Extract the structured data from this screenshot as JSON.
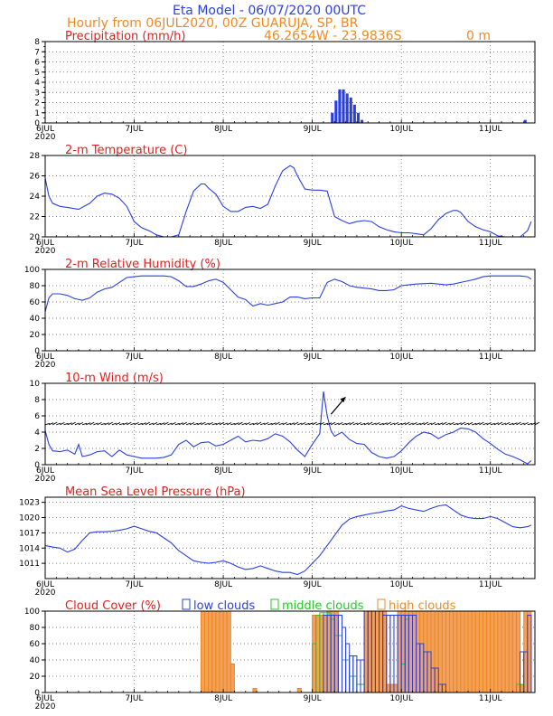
{
  "header": {
    "title": "Eta Model - 06/07/2020 00UTC",
    "subtitle": "Hourly from 06JUL2020, 00Z  GUARUJA, SP, BR",
    "coords": "46.2654W - 23.9836S",
    "elevation": "0   m"
  },
  "colors": {
    "title": "#2a3fe0",
    "orange": "#f08a24",
    "red": "#e02020",
    "series": "#2a3fe0",
    "low": "#2a3fe0",
    "middle": "#1fcc1f",
    "high": "#f5a05a",
    "high_edge": "#e8891e",
    "arrow": "#000000"
  },
  "x_axis": {
    "hours": 132,
    "tick_hours": [
      0,
      24,
      48,
      72,
      96,
      120
    ],
    "tick_labels": [
      "6JUL",
      "7JUL",
      "8JUL",
      "9JUL",
      "10JUL",
      "11JUL"
    ],
    "year_label": "2020"
  },
  "chart_data": [
    {
      "type": "bar",
      "title": "Precipitation (mm/h)",
      "ylim": [
        0,
        8
      ],
      "yticks": [
        0,
        1,
        2,
        3,
        4,
        5,
        6,
        7,
        8
      ],
      "points": [
        [
          77,
          1.0
        ],
        [
          78,
          2.2
        ],
        [
          79,
          3.3
        ],
        [
          80,
          3.3
        ],
        [
          81,
          2.9
        ],
        [
          82,
          2.5
        ],
        [
          83,
          1.8
        ],
        [
          84,
          1.0
        ],
        [
          85,
          0.3
        ],
        [
          129,
          0.3
        ]
      ]
    },
    {
      "type": "line",
      "title": "2-m Temperature (C)",
      "ylim": [
        20,
        28
      ],
      "yticks": [
        20,
        22,
        24,
        26,
        28
      ],
      "points": [
        [
          0,
          25.8
        ],
        [
          1,
          24.0
        ],
        [
          2,
          23.3
        ],
        [
          4,
          23.0
        ],
        [
          6,
          22.9
        ],
        [
          9,
          22.7
        ],
        [
          12,
          23.3
        ],
        [
          14,
          24.0
        ],
        [
          16,
          24.3
        ],
        [
          18,
          24.2
        ],
        [
          20,
          23.8
        ],
        [
          22,
          23.0
        ],
        [
          24,
          21.5
        ],
        [
          26,
          20.9
        ],
        [
          28,
          20.6
        ],
        [
          30,
          20.2
        ],
        [
          32,
          20.0
        ],
        [
          34,
          20.0
        ],
        [
          36,
          20.2
        ],
        [
          38,
          22.5
        ],
        [
          40,
          24.5
        ],
        [
          42,
          25.2
        ],
        [
          43,
          25.2
        ],
        [
          44,
          24.8
        ],
        [
          46,
          24.2
        ],
        [
          48,
          23.0
        ],
        [
          50,
          22.5
        ],
        [
          52,
          22.5
        ],
        [
          54,
          22.9
        ],
        [
          56,
          23.0
        ],
        [
          58,
          22.8
        ],
        [
          60,
          23.2
        ],
        [
          62,
          25.0
        ],
        [
          64,
          26.5
        ],
        [
          66,
          27.0
        ],
        [
          67,
          26.8
        ],
        [
          68,
          26.0
        ],
        [
          70,
          24.7
        ],
        [
          72,
          24.6
        ],
        [
          74,
          24.6
        ],
        [
          76,
          24.5
        ],
        [
          78,
          22.0
        ],
        [
          80,
          21.6
        ],
        [
          82,
          21.3
        ],
        [
          84,
          21.5
        ],
        [
          86,
          21.6
        ],
        [
          88,
          21.5
        ],
        [
          90,
          21.0
        ],
        [
          92,
          20.7
        ],
        [
          94,
          20.5
        ],
        [
          96,
          20.4
        ],
        [
          98,
          20.4
        ],
        [
          100,
          20.3
        ],
        [
          102,
          20.2
        ],
        [
          104,
          20.8
        ],
        [
          106,
          21.7
        ],
        [
          108,
          22.3
        ],
        [
          110,
          22.6
        ],
        [
          111,
          22.6
        ],
        [
          112,
          22.4
        ],
        [
          114,
          21.5
        ],
        [
          116,
          21.0
        ],
        [
          118,
          20.7
        ],
        [
          120,
          20.5
        ],
        [
          122,
          20.1
        ],
        [
          124,
          20.0
        ],
        [
          126,
          20.0
        ],
        [
          128,
          20.0
        ],
        [
          130,
          20.6
        ],
        [
          131,
          21.5
        ]
      ]
    },
    {
      "type": "line",
      "title": "2-m Relative Humidity (%)",
      "ylim": [
        0,
        100
      ],
      "yticks": [
        0,
        20,
        40,
        60,
        80,
        100
      ],
      "points": [
        [
          0,
          48
        ],
        [
          1,
          65
        ],
        [
          2,
          70
        ],
        [
          4,
          70
        ],
        [
          6,
          68
        ],
        [
          8,
          64
        ],
        [
          10,
          62
        ],
        [
          12,
          65
        ],
        [
          14,
          72
        ],
        [
          16,
          76
        ],
        [
          18,
          78
        ],
        [
          20,
          84
        ],
        [
          22,
          90
        ],
        [
          24,
          91
        ],
        [
          26,
          92
        ],
        [
          28,
          92
        ],
        [
          30,
          92
        ],
        [
          32,
          92
        ],
        [
          34,
          91
        ],
        [
          36,
          86
        ],
        [
          38,
          79
        ],
        [
          40,
          79
        ],
        [
          42,
          82
        ],
        [
          44,
          86
        ],
        [
          46,
          88
        ],
        [
          48,
          84
        ],
        [
          50,
          75
        ],
        [
          52,
          66
        ],
        [
          54,
          63
        ],
        [
          56,
          55
        ],
        [
          58,
          58
        ],
        [
          60,
          56
        ],
        [
          62,
          58
        ],
        [
          64,
          60
        ],
        [
          66,
          66
        ],
        [
          68,
          66
        ],
        [
          70,
          64
        ],
        [
          72,
          65
        ],
        [
          74,
          65
        ],
        [
          76,
          84
        ],
        [
          78,
          88
        ],
        [
          80,
          85
        ],
        [
          82,
          80
        ],
        [
          84,
          78
        ],
        [
          86,
          77
        ],
        [
          88,
          76
        ],
        [
          90,
          74
        ],
        [
          92,
          74
        ],
        [
          94,
          75
        ],
        [
          96,
          80
        ],
        [
          98,
          81
        ],
        [
          100,
          82
        ],
        [
          104,
          83
        ],
        [
          108,
          81
        ],
        [
          110,
          82
        ],
        [
          112,
          84
        ],
        [
          114,
          86
        ],
        [
          116,
          88
        ],
        [
          118,
          91
        ],
        [
          120,
          92
        ],
        [
          124,
          92
        ],
        [
          128,
          92
        ],
        [
          130,
          91
        ],
        [
          131,
          88
        ]
      ]
    },
    {
      "type": "line",
      "title": "10-m Wind (m/s)",
      "ylim": [
        0,
        10
      ],
      "yticks": [
        0,
        2,
        4,
        6,
        8,
        10
      ],
      "points": [
        [
          0,
          4.2
        ],
        [
          1,
          2.5
        ],
        [
          2,
          1.7
        ],
        [
          4,
          1.6
        ],
        [
          6,
          1.8
        ],
        [
          8,
          1.3
        ],
        [
          9,
          2.5
        ],
        [
          10,
          1.0
        ],
        [
          12,
          1.2
        ],
        [
          14,
          1.6
        ],
        [
          16,
          1.7
        ],
        [
          18,
          1.0
        ],
        [
          20,
          1.8
        ],
        [
          22,
          1.2
        ],
        [
          24,
          1.0
        ],
        [
          26,
          0.8
        ],
        [
          28,
          0.8
        ],
        [
          30,
          0.8
        ],
        [
          32,
          0.9
        ],
        [
          34,
          1.2
        ],
        [
          36,
          2.5
        ],
        [
          38,
          3.0
        ],
        [
          40,
          2.2
        ],
        [
          42,
          2.7
        ],
        [
          44,
          2.8
        ],
        [
          46,
          2.3
        ],
        [
          48,
          2.5
        ],
        [
          50,
          3.0
        ],
        [
          52,
          3.5
        ],
        [
          54,
          2.8
        ],
        [
          56,
          3.0
        ],
        [
          58,
          2.9
        ],
        [
          60,
          3.2
        ],
        [
          62,
          3.8
        ],
        [
          64,
          3.5
        ],
        [
          66,
          2.8
        ],
        [
          68,
          1.8
        ],
        [
          70,
          1.0
        ],
        [
          72,
          2.5
        ],
        [
          74,
          3.8
        ],
        [
          75,
          9.0
        ],
        [
          76,
          6.0
        ],
        [
          77,
          4.2
        ],
        [
          78,
          3.5
        ],
        [
          80,
          4.0
        ],
        [
          82,
          3.1
        ],
        [
          84,
          2.6
        ],
        [
          86,
          2.5
        ],
        [
          88,
          1.5
        ],
        [
          90,
          1.0
        ],
        [
          92,
          0.8
        ],
        [
          94,
          1.0
        ],
        [
          96,
          1.7
        ],
        [
          98,
          2.7
        ],
        [
          100,
          3.5
        ],
        [
          102,
          4.0
        ],
        [
          104,
          3.8
        ],
        [
          106,
          3.2
        ],
        [
          108,
          3.7
        ],
        [
          110,
          4.0
        ],
        [
          112,
          4.5
        ],
        [
          114,
          4.4
        ],
        [
          116,
          4.0
        ],
        [
          118,
          3.2
        ],
        [
          120,
          2.6
        ],
        [
          122,
          1.9
        ],
        [
          124,
          1.3
        ],
        [
          126,
          1.0
        ],
        [
          128,
          0.6
        ],
        [
          130,
          0.1
        ],
        [
          131,
          0.5
        ]
      ],
      "barb_y": 4.8,
      "arrow": {
        "hour": 79,
        "y_start": 6.2,
        "y_end": 8.3
      }
    },
    {
      "type": "line",
      "title": "Mean Sea Level Pressure (hPa)",
      "ylim": [
        1008,
        1024
      ],
      "yticks": [
        1011,
        1014,
        1017,
        1020,
        1023
      ],
      "points": [
        [
          0,
          1014.5
        ],
        [
          2,
          1014.2
        ],
        [
          4,
          1014.0
        ],
        [
          6,
          1013.2
        ],
        [
          8,
          1013.8
        ],
        [
          10,
          1015.5
        ],
        [
          12,
          1017.0
        ],
        [
          14,
          1017.2
        ],
        [
          16,
          1017.2
        ],
        [
          18,
          1017.3
        ],
        [
          20,
          1017.5
        ],
        [
          22,
          1017.8
        ],
        [
          24,
          1018.3
        ],
        [
          26,
          1017.8
        ],
        [
          28,
          1017.3
        ],
        [
          30,
          1017.0
        ],
        [
          32,
          1016.0
        ],
        [
          34,
          1015.0
        ],
        [
          36,
          1013.5
        ],
        [
          38,
          1012.5
        ],
        [
          40,
          1011.5
        ],
        [
          42,
          1011.2
        ],
        [
          44,
          1011.0
        ],
        [
          46,
          1011.2
        ],
        [
          48,
          1011.5
        ],
        [
          50,
          1011.0
        ],
        [
          52,
          1010.3
        ],
        [
          54,
          1009.8
        ],
        [
          56,
          1010.0
        ],
        [
          58,
          1010.5
        ],
        [
          60,
          1010.0
        ],
        [
          62,
          1009.5
        ],
        [
          64,
          1009.2
        ],
        [
          66,
          1009.2
        ],
        [
          68,
          1008.8
        ],
        [
          70,
          1009.5
        ],
        [
          72,
          1011.0
        ],
        [
          74,
          1012.5
        ],
        [
          76,
          1014.5
        ],
        [
          78,
          1016.5
        ],
        [
          80,
          1018.5
        ],
        [
          82,
          1019.7
        ],
        [
          84,
          1020.2
        ],
        [
          86,
          1020.5
        ],
        [
          88,
          1020.8
        ],
        [
          90,
          1021.0
        ],
        [
          92,
          1021.3
        ],
        [
          94,
          1021.5
        ],
        [
          96,
          1022.3
        ],
        [
          98,
          1021.8
        ],
        [
          100,
          1021.5
        ],
        [
          102,
          1021.2
        ],
        [
          104,
          1021.8
        ],
        [
          106,
          1022.3
        ],
        [
          108,
          1022.5
        ],
        [
          110,
          1021.5
        ],
        [
          112,
          1020.5
        ],
        [
          114,
          1020.0
        ],
        [
          116,
          1019.8
        ],
        [
          118,
          1019.8
        ],
        [
          120,
          1020.2
        ],
        [
          122,
          1019.8
        ],
        [
          124,
          1019.0
        ],
        [
          126,
          1018.2
        ],
        [
          128,
          1018.0
        ],
        [
          130,
          1018.2
        ],
        [
          131,
          1018.5
        ]
      ]
    },
    {
      "type": "bar",
      "title": "Cloud Cover (%)",
      "legend": [
        "low clouds",
        "middle clouds",
        "high clouds"
      ],
      "ylim": [
        0,
        100
      ],
      "yticks": [
        0,
        20,
        40,
        60,
        80,
        100
      ],
      "high_segments": [
        [
          42,
          50,
          100
        ],
        [
          50,
          51,
          35
        ],
        [
          56,
          57,
          5
        ],
        [
          68,
          69,
          5
        ],
        [
          72,
          76,
          95
        ],
        [
          76,
          79,
          100
        ],
        [
          86,
          92,
          100
        ],
        [
          92,
          95,
          10
        ],
        [
          95,
          96,
          100
        ],
        [
          96,
          97,
          100
        ],
        [
          97,
          102,
          100
        ],
        [
          102,
          106,
          100
        ],
        [
          106,
          112,
          100
        ],
        [
          112,
          117,
          100
        ],
        [
          117,
          123,
          100
        ],
        [
          123,
          128,
          100
        ],
        [
          128,
          129,
          10
        ],
        [
          129,
          131,
          100
        ]
      ],
      "middle_segments": [
        [
          72,
          73,
          60
        ],
        [
          73,
          74,
          95
        ],
        [
          74,
          77,
          98
        ],
        [
          77,
          78,
          90
        ],
        [
          78,
          80,
          70
        ],
        [
          80,
          82,
          40
        ],
        [
          82,
          84,
          20
        ],
        [
          84,
          86,
          10
        ],
        [
          96,
          97,
          35
        ],
        [
          97,
          98,
          90
        ],
        [
          127,
          129,
          10
        ]
      ],
      "low_segments": [
        [
          75,
          76,
          95
        ],
        [
          76,
          80,
          95
        ],
        [
          80,
          81,
          80
        ],
        [
          81,
          82,
          60
        ],
        [
          82,
          84,
          45
        ],
        [
          84,
          86,
          40
        ],
        [
          86,
          88,
          100
        ],
        [
          88,
          91,
          100
        ],
        [
          91,
          94,
          95
        ],
        [
          94,
          96,
          95
        ],
        [
          96,
          98,
          95
        ],
        [
          98,
          100,
          95
        ],
        [
          100,
          102,
          60
        ],
        [
          102,
          104,
          50
        ],
        [
          104,
          106,
          30
        ],
        [
          106,
          108,
          10
        ],
        [
          128,
          130,
          50
        ],
        [
          130,
          131,
          95
        ]
      ]
    }
  ]
}
